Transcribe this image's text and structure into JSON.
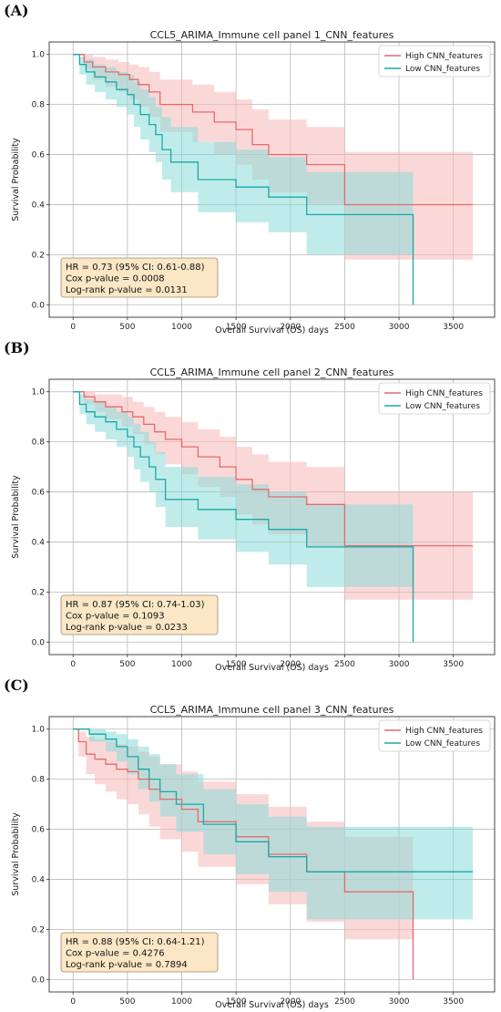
{
  "colors": {
    "high": "#e8696b",
    "low": "#1aa8a5",
    "high_band": "#f7b8b8",
    "low_band": "#8bdcd9",
    "statbox": "#fbe7c6"
  },
  "chart_data": [
    {
      "panel_label": "(A)",
      "type": "line",
      "title": "CCL5_ARIMA_Immune cell panel 1_CNN_features",
      "xlabel": "Overall Survival (OS) days",
      "ylabel": "Survival Probability",
      "xlim": [
        -220,
        3880
      ],
      "ylim": [
        -0.05,
        1.05
      ],
      "xticks": [
        0,
        500,
        1000,
        1500,
        2000,
        2500,
        3000,
        3500
      ],
      "xtick_labels": [
        "0",
        "500",
        "1000",
        "1500",
        "2000",
        "2500",
        "3000",
        "3500"
      ],
      "yticks": [
        0.0,
        0.2,
        0.4,
        0.6,
        0.8,
        1.0
      ],
      "ytick_labels": [
        "0.0",
        "0.2",
        "0.4",
        "0.6",
        "0.8",
        "1.0"
      ],
      "grid": true,
      "legend_position": "top-right",
      "stats": [
        "HR = 0.73 (95% CI: 0.61-0.88)",
        "Cox p-value = 0.0008",
        "Log-rank p-value = 0.0131"
      ],
      "series": [
        {
          "name": "High CNN_features",
          "color_key": "high",
          "x": [
            0,
            100,
            180,
            300,
            420,
            520,
            600,
            700,
            800,
            1100,
            1300,
            1500,
            1650,
            1800,
            2150,
            2500,
            3680
          ],
          "y": [
            1.0,
            0.97,
            0.95,
            0.93,
            0.92,
            0.9,
            0.88,
            0.85,
            0.8,
            0.77,
            0.73,
            0.7,
            0.64,
            0.6,
            0.56,
            0.4,
            0.4
          ],
          "lower": [
            1.0,
            0.94,
            0.9,
            0.87,
            0.85,
            0.82,
            0.79,
            0.75,
            0.69,
            0.65,
            0.6,
            0.56,
            0.5,
            0.45,
            0.4,
            0.18,
            0.18
          ],
          "upper": [
            1.0,
            1.0,
            0.99,
            0.98,
            0.97,
            0.96,
            0.95,
            0.93,
            0.9,
            0.88,
            0.85,
            0.82,
            0.78,
            0.74,
            0.71,
            0.61,
            0.61
          ]
        },
        {
          "name": "Low CNN_features",
          "color_key": "low",
          "x": [
            0,
            60,
            120,
            200,
            300,
            400,
            500,
            560,
            620,
            700,
            760,
            820,
            900,
            1150,
            1500,
            1800,
            2150,
            3130
          ],
          "y": [
            1.0,
            0.96,
            0.93,
            0.91,
            0.89,
            0.86,
            0.84,
            0.8,
            0.76,
            0.72,
            0.68,
            0.62,
            0.57,
            0.5,
            0.47,
            0.43,
            0.36,
            0.0
          ],
          "lower": [
            1.0,
            0.92,
            0.88,
            0.85,
            0.82,
            0.79,
            0.76,
            0.71,
            0.66,
            0.61,
            0.57,
            0.5,
            0.45,
            0.37,
            0.33,
            0.29,
            0.2,
            0.0
          ],
          "upper": [
            1.0,
            0.99,
            0.98,
            0.96,
            0.95,
            0.93,
            0.92,
            0.89,
            0.86,
            0.83,
            0.79,
            0.75,
            0.71,
            0.65,
            0.62,
            0.59,
            0.53,
            0.53
          ]
        }
      ]
    },
    {
      "panel_label": "(B)",
      "type": "line",
      "title": "CCL5_ARIMA_Immune cell panel 2_CNN_features",
      "xlabel": "Overall Survival (OS) days",
      "ylabel": "Survival Probability",
      "xlim": [
        -220,
        3880
      ],
      "ylim": [
        -0.05,
        1.05
      ],
      "xticks": [
        0,
        500,
        1000,
        1500,
        2000,
        2500,
        3000,
        3500
      ],
      "xtick_labels": [
        "0",
        "500",
        "1000",
        "1500",
        "2000",
        "2500",
        "3000",
        "3500"
      ],
      "yticks": [
        0.0,
        0.2,
        0.4,
        0.6,
        0.8,
        1.0
      ],
      "ytick_labels": [
        "0.0",
        "0.2",
        "0.4",
        "0.6",
        "0.8",
        "1.0"
      ],
      "grid": true,
      "legend_position": "top-right",
      "stats": [
        "HR = 0.87 (95% CI: 0.74-1.03)",
        "Cox p-value = 0.1093",
        "Log-rank p-value = 0.0233"
      ],
      "series": [
        {
          "name": "High CNN_features",
          "color_key": "high",
          "x": [
            0,
            100,
            200,
            300,
            450,
            550,
            650,
            750,
            850,
            1000,
            1150,
            1350,
            1500,
            1650,
            1800,
            2150,
            2500,
            3680
          ],
          "y": [
            1.0,
            0.98,
            0.96,
            0.94,
            0.92,
            0.9,
            0.87,
            0.84,
            0.81,
            0.78,
            0.74,
            0.7,
            0.65,
            0.61,
            0.58,
            0.55,
            0.385,
            0.385
          ],
          "lower": [
            1.0,
            0.95,
            0.92,
            0.89,
            0.86,
            0.83,
            0.79,
            0.75,
            0.71,
            0.67,
            0.62,
            0.58,
            0.51,
            0.47,
            0.43,
            0.38,
            0.17,
            0.17
          ],
          "upper": [
            1.0,
            1.0,
            0.99,
            0.99,
            0.98,
            0.96,
            0.94,
            0.92,
            0.9,
            0.88,
            0.85,
            0.82,
            0.78,
            0.75,
            0.72,
            0.7,
            0.6,
            0.6
          ]
        },
        {
          "name": "Low CNN_features",
          "color_key": "low",
          "x": [
            0,
            60,
            120,
            200,
            300,
            400,
            500,
            560,
            620,
            700,
            760,
            850,
            1150,
            1500,
            1800,
            2150,
            3130
          ],
          "y": [
            1.0,
            0.95,
            0.92,
            0.9,
            0.88,
            0.85,
            0.82,
            0.78,
            0.74,
            0.7,
            0.65,
            0.57,
            0.53,
            0.49,
            0.45,
            0.38,
            0.0
          ],
          "lower": [
            1.0,
            0.91,
            0.87,
            0.84,
            0.81,
            0.78,
            0.74,
            0.69,
            0.64,
            0.6,
            0.54,
            0.46,
            0.41,
            0.36,
            0.31,
            0.22,
            0.0
          ],
          "upper": [
            1.0,
            0.99,
            0.97,
            0.96,
            0.94,
            0.92,
            0.9,
            0.87,
            0.84,
            0.8,
            0.76,
            0.7,
            0.66,
            0.63,
            0.6,
            0.55,
            0.55
          ]
        }
      ]
    },
    {
      "panel_label": "(C)",
      "type": "line",
      "title": "CCL5_ARIMA_Immune cell panel 3_CNN_features",
      "xlabel": "Overall Survival (OS) days",
      "ylabel": "Survival Probability",
      "xlim": [
        -220,
        3880
      ],
      "ylim": [
        -0.05,
        1.05
      ],
      "xticks": [
        0,
        500,
        1000,
        1500,
        2000,
        2500,
        3000,
        3500
      ],
      "xtick_labels": [
        "0",
        "500",
        "1000",
        "1500",
        "2000",
        "2500",
        "3000",
        "3500"
      ],
      "yticks": [
        0.0,
        0.2,
        0.4,
        0.6,
        0.8,
        1.0
      ],
      "ytick_labels": [
        "0.0",
        "0.2",
        "0.4",
        "0.6",
        "0.8",
        "1.0"
      ],
      "grid": true,
      "legend_position": "top-right",
      "stats": [
        "HR = 0.88 (95% CI: 0.64-1.21)",
        "Cox p-value = 0.4276",
        "Log-rank p-value = 0.7894"
      ],
      "series": [
        {
          "name": "High CNN_features",
          "color_key": "high",
          "x": [
            0,
            50,
            120,
            200,
            300,
            400,
            500,
            600,
            700,
            800,
            1000,
            1150,
            1500,
            1800,
            2150,
            2500,
            3130
          ],
          "y": [
            1.0,
            0.95,
            0.9,
            0.88,
            0.86,
            0.84,
            0.83,
            0.8,
            0.76,
            0.72,
            0.68,
            0.63,
            0.57,
            0.5,
            0.43,
            0.35,
            0.0
          ],
          "lower": [
            1.0,
            0.89,
            0.82,
            0.78,
            0.75,
            0.72,
            0.7,
            0.66,
            0.61,
            0.56,
            0.51,
            0.45,
            0.38,
            0.3,
            0.23,
            0.16,
            0.0
          ],
          "upper": [
            1.0,
            0.99,
            0.97,
            0.96,
            0.95,
            0.94,
            0.93,
            0.91,
            0.89,
            0.86,
            0.83,
            0.79,
            0.74,
            0.69,
            0.63,
            0.57,
            0.57
          ]
        },
        {
          "name": "Low CNN_features",
          "color_key": "low",
          "x": [
            0,
            150,
            300,
            400,
            500,
            600,
            700,
            800,
            950,
            1200,
            1500,
            1800,
            2150,
            3680
          ],
          "y": [
            1.0,
            0.98,
            0.96,
            0.93,
            0.89,
            0.84,
            0.8,
            0.75,
            0.7,
            0.62,
            0.55,
            0.49,
            0.43,
            0.43
          ],
          "lower": [
            1.0,
            0.95,
            0.91,
            0.87,
            0.82,
            0.76,
            0.71,
            0.65,
            0.59,
            0.5,
            0.42,
            0.35,
            0.24,
            0.24
          ],
          "upper": [
            1.0,
            1.0,
            0.99,
            0.98,
            0.96,
            0.93,
            0.9,
            0.86,
            0.82,
            0.76,
            0.7,
            0.65,
            0.61,
            0.61
          ]
        }
      ]
    }
  ]
}
